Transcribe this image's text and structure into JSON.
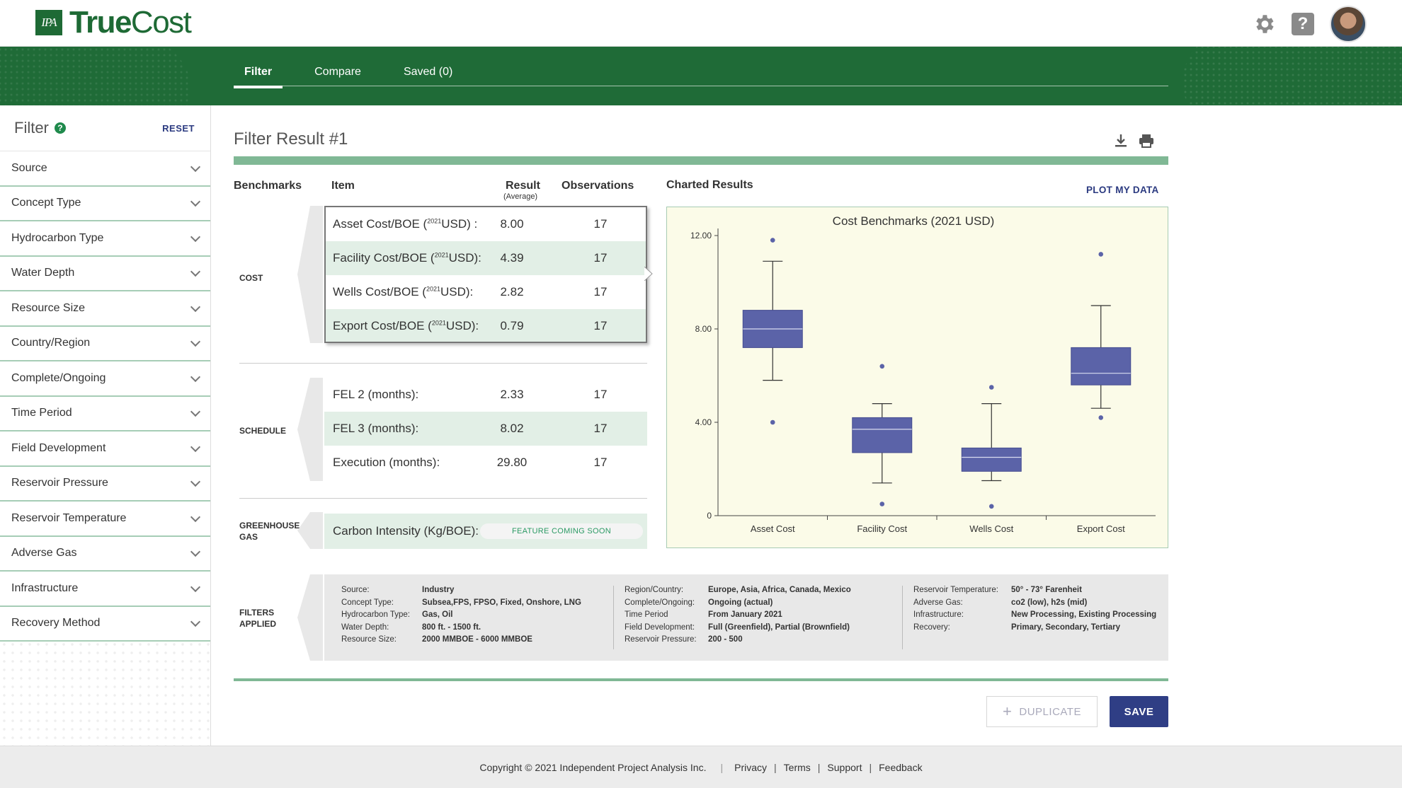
{
  "app": {
    "logo_badge": "IPA",
    "logo_true": "True",
    "logo_cost": "Cost"
  },
  "nav": {
    "tabs": [
      {
        "label": "Filter",
        "active": true
      },
      {
        "label": "Compare"
      },
      {
        "label": "Saved (0)"
      }
    ]
  },
  "sidebar": {
    "title": "Filter",
    "reset_label": "RESET",
    "facets": [
      "Source",
      "Concept Type",
      "Hydrocarbon Type",
      "Water Depth",
      "Resource Size",
      "Country/Region",
      "Complete/Ongoing",
      "Time Period",
      "Field Development",
      "Reservoir Pressure",
      "Reservoir Temperature",
      "Adverse Gas",
      "Infrastructure",
      "Recovery Method"
    ]
  },
  "main": {
    "title": "Filter Result #1",
    "headers": {
      "benchmarks": "Benchmarks",
      "item": "Item",
      "result": "Result",
      "result_sub": "(Average)",
      "observations": "Observations",
      "charted": "Charted Results",
      "plot_link": "PLOT MY DATA"
    },
    "groups": {
      "cost": {
        "label": "COST",
        "rows": [
          {
            "item_pre": "Asset Cost/BOE (",
            "sup": "2021",
            "item_post": "USD) :",
            "value": "8.00",
            "obs": "17"
          },
          {
            "item_pre": "Facility Cost/BOE (",
            "sup": "2021",
            "item_post": "USD):",
            "value": "4.39",
            "obs": "17"
          },
          {
            "item_pre": "Wells Cost/BOE (",
            "sup": "2021",
            "item_post": "USD):",
            "value": "2.82",
            "obs": "17"
          },
          {
            "item_pre": "Export Cost/BOE (",
            "sup": "2021",
            "item_post": "USD):",
            "value": "0.79",
            "obs": "17"
          }
        ]
      },
      "schedule": {
        "label": "SCHEDULE",
        "rows": [
          {
            "item": "FEL 2 (months):",
            "value": "2.33",
            "obs": "17"
          },
          {
            "item": "FEL 3 (months):",
            "value": "8.02",
            "obs": "17"
          },
          {
            "item": "Execution (months):",
            "value": "29.80",
            "obs": "17"
          }
        ]
      },
      "greenhouse": {
        "label_line1": "GREENHOUSE",
        "label_line2": "GAS",
        "item": "Carbon Intensity (Kg/BOE):",
        "badge": "FEATURE COMING SOON"
      }
    },
    "filters_applied": {
      "label_line1": "FILTERS",
      "label_line2": "APPLIED",
      "col1": [
        {
          "k": "Source:",
          "v": "Industry"
        },
        {
          "k": "Concept Type:",
          "v": "Subsea,FPS, FPSO, Fixed, Onshore, LNG"
        },
        {
          "k": "Hydrocarbon Type:",
          "v": "Gas, Oil"
        },
        {
          "k": "Water Depth:",
          "v": "800 ft. - 1500 ft."
        },
        {
          "k": "Resource Size:",
          "v": "2000 MMBOE - 6000 MMBOE"
        }
      ],
      "col2": [
        {
          "k": "Region/Country:",
          "v": "Europe, Asia, Africa, Canada, Mexico"
        },
        {
          "k": "Complete/Ongoing:",
          "v": "Ongoing (actual)"
        },
        {
          "k": "Time Period",
          "v": "From January 2021"
        },
        {
          "k": "Field Development:",
          "v": "Full (Greenfield), Partial (Brownfield)"
        },
        {
          "k": "Reservoir Pressure:",
          "v": "200 - 500"
        }
      ],
      "col3": [
        {
          "k": "Reservoir Temperature:",
          "v": "50° - 73° Farenheit"
        },
        {
          "k": "Adverse Gas:",
          "v": "co2 (low), h2s (mid)"
        },
        {
          "k": "Infrastructure:",
          "v": "New Processing, Existing Processing"
        },
        {
          "k": "Recovery:",
          "v": "Primary, Secondary, Tertiary"
        }
      ]
    },
    "buttons": {
      "duplicate": "DUPLICATE",
      "save": "SAVE"
    }
  },
  "chart_data": {
    "type": "box",
    "title": "Cost Benchmarks (2021 USD)",
    "categories": [
      "Asset Cost",
      "Facility Cost",
      "Wells Cost",
      "Export Cost"
    ],
    "y_ticks": [
      "0",
      "4.00",
      "8.00",
      "12.00"
    ],
    "ylim": [
      0,
      12
    ],
    "box_color": "#5b63a8",
    "boxes": [
      {
        "name": "Asset Cost",
        "whisker_low": 5.8,
        "q1": 7.2,
        "median": 8.0,
        "q3": 8.8,
        "whisker_high": 10.9,
        "outliers": [
          11.8,
          4.0
        ]
      },
      {
        "name": "Facility Cost",
        "whisker_low": 1.4,
        "q1": 2.7,
        "median": 3.7,
        "q3": 4.2,
        "whisker_high": 4.8,
        "outliers": [
          6.4,
          0.5
        ]
      },
      {
        "name": "Wells Cost",
        "whisker_low": 1.5,
        "q1": 1.9,
        "median": 2.5,
        "q3": 2.9,
        "whisker_high": 4.8,
        "outliers": [
          5.5,
          0.4
        ]
      },
      {
        "name": "Export Cost",
        "whisker_low": 4.6,
        "q1": 5.6,
        "median": 6.1,
        "q3": 7.2,
        "whisker_high": 9.0,
        "outliers": [
          11.2,
          4.2
        ]
      }
    ]
  },
  "footer": {
    "copyright": "Copyright © 2021 Independent Project Analysis Inc.",
    "links": [
      "Privacy",
      "Terms",
      "Support",
      "Feedback"
    ]
  }
}
